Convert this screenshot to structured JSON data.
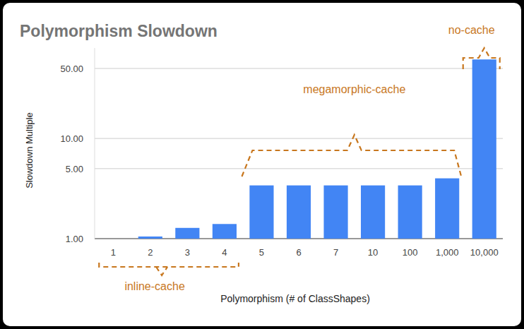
{
  "chart_data": {
    "type": "bar",
    "title": "Polymorphism Slowdown",
    "x_label": "Polymorphism (# of ClassShapes)",
    "y_label": "Slowdown Multiple",
    "categories": [
      "1",
      "2",
      "3",
      "4",
      "5",
      "6",
      "7",
      "10",
      "100",
      "1,000",
      "10,000"
    ],
    "values": [
      1,
      1.05,
      1.28,
      1.4,
      3.4,
      3.4,
      3.4,
      3.4,
      3.4,
      4,
      61.5
    ],
    "color": "#4285f4",
    "log": "y",
    "ylim": [
      1,
      80
    ],
    "yticks": [
      {
        "value": 1,
        "label": "1.00"
      },
      {
        "value": 5,
        "label": "5.00"
      },
      {
        "value": 10,
        "label": "10.00"
      },
      {
        "value": 50,
        "label": "50.00"
      }
    ],
    "grid": true,
    "annotations": [
      "inline-cache",
      "megamorphic-cache",
      "no-cache"
    ]
  }
}
